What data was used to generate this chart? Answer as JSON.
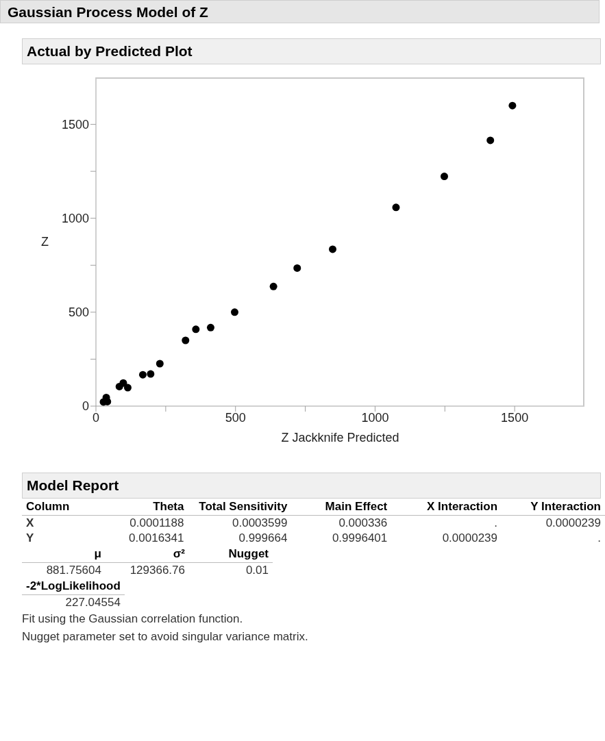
{
  "chart_data": [
    {
      "type": "scatter",
      "title": "Gaussian Process Model of Z",
      "subtitle": "Actual by Predicted Plot",
      "xlabel": "Z Jackknife Predicted",
      "ylabel": "Z",
      "xlim": [
        0,
        1750
      ],
      "ylim": [
        0,
        1750
      ],
      "xticks": [
        0,
        {
          "value": 250,
          "label": null
        },
        500,
        {
          "value": 750,
          "label": null
        },
        1000,
        {
          "value": 1250,
          "label": null
        },
        1500
      ],
      "yticks": [
        0,
        {
          "value": 250,
          "label": null
        },
        500,
        {
          "value": 750,
          "label": null
        },
        1000,
        {
          "value": 1250,
          "label": null
        },
        1500
      ],
      "marker": "circle",
      "series": [
        {
          "color": "#000000",
          "x": [
            27,
            37,
            41,
            84,
            98,
            114,
            168,
            196,
            229,
            321,
            358,
            411,
            497,
            636,
            721,
            848,
            1075,
            1248,
            1413,
            1492
          ],
          "values": [
            22,
            46,
            24,
            104,
            123,
            98,
            167,
            171,
            226,
            350,
            409,
            418,
            500,
            637,
            735,
            835,
            1058,
            1223,
            1415,
            1600
          ]
        }
      ]
    },
    {
      "type": "other",
      "title": "Model Report",
      "annotations": [
        "Column",
        "Theta",
        "Total Sensitivity",
        "Main Effect",
        "X Interaction",
        "Y Interaction",
        "X",
        "0.0001188",
        "0.0003599",
        "0.000336",
        ".",
        "0.0000239",
        "Y",
        "0.0016341",
        "0.999664",
        "0.9996401",
        "0.0000239",
        ".",
        "μ",
        "σ²",
        "Nugget",
        "881.75604",
        "129366.76",
        "0.01",
        "-2*LogLikelihood",
        "227.04554",
        "Fit using the Gaussian correlation function.",
        "Nugget parameter set to avoid singular variance matrix."
      ]
    }
  ]
}
